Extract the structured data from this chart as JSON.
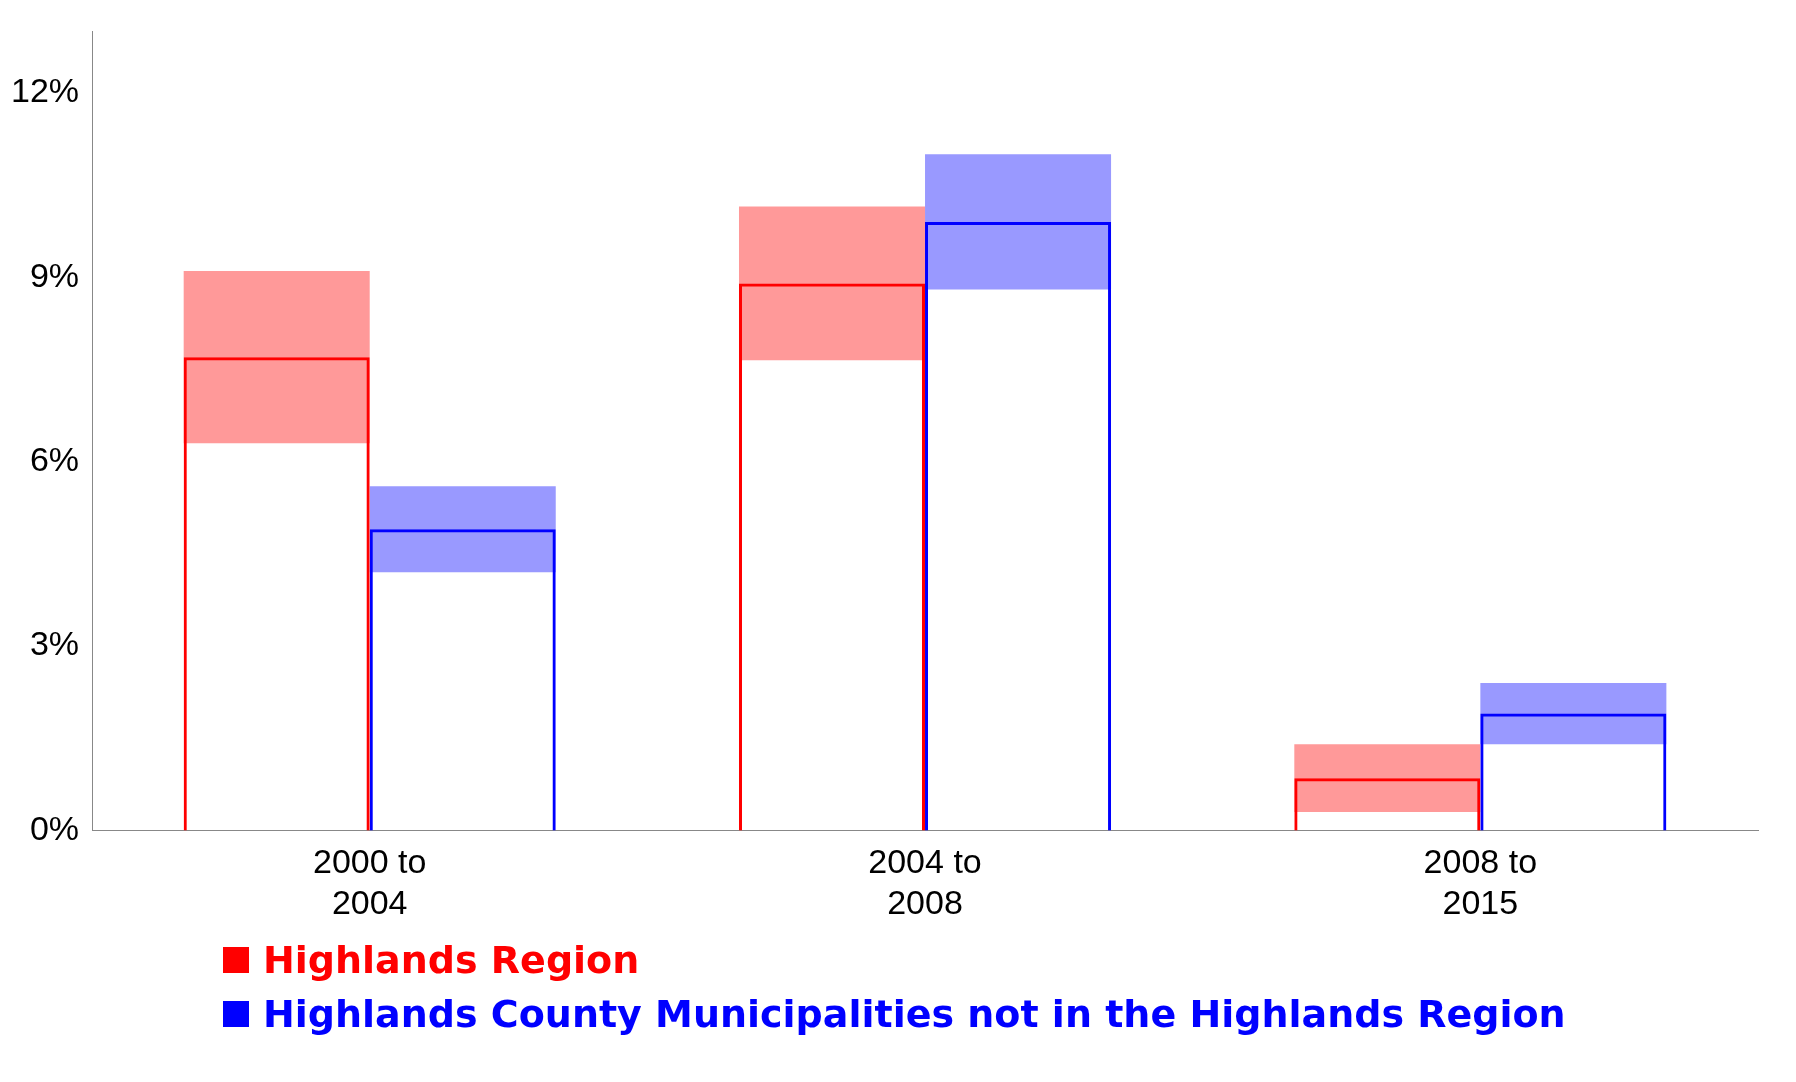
{
  "chart_data": {
    "type": "bar",
    "categories": [
      "2000 to 2004",
      "2004 to 2008",
      "2008 to 2015"
    ],
    "series": [
      {
        "color": "#ff9999",
        "base": [
          6.3,
          7.65,
          0.3
        ],
        "values": [
          2.8,
          2.5,
          1.1
        ]
      },
      {
        "color": "#9999ff",
        "base": [
          4.2,
          8.8,
          1.4
        ],
        "values": [
          1.4,
          2.2,
          1.0
        ]
      },
      {
        "name": "Highlands Region",
        "color": "#ff0000",
        "values": [
          7.7,
          8.9,
          0.85
        ]
      },
      {
        "name": "Highlands County Municipalities not in the Highlands Region",
        "color": "#0000ff",
        "values": [
          4.9,
          9.9,
          1.9
        ]
      }
    ],
    "ylim": [
      0,
      13
    ],
    "yticks": [
      {
        "value": 0,
        "label": "0%"
      },
      {
        "value": 3,
        "label": "3%"
      },
      {
        "value": 6,
        "label": "6%"
      },
      {
        "value": 9,
        "label": "9%"
      },
      {
        "value": 12,
        "label": "12%"
      }
    ],
    "grid": false,
    "legend": "bottom"
  }
}
